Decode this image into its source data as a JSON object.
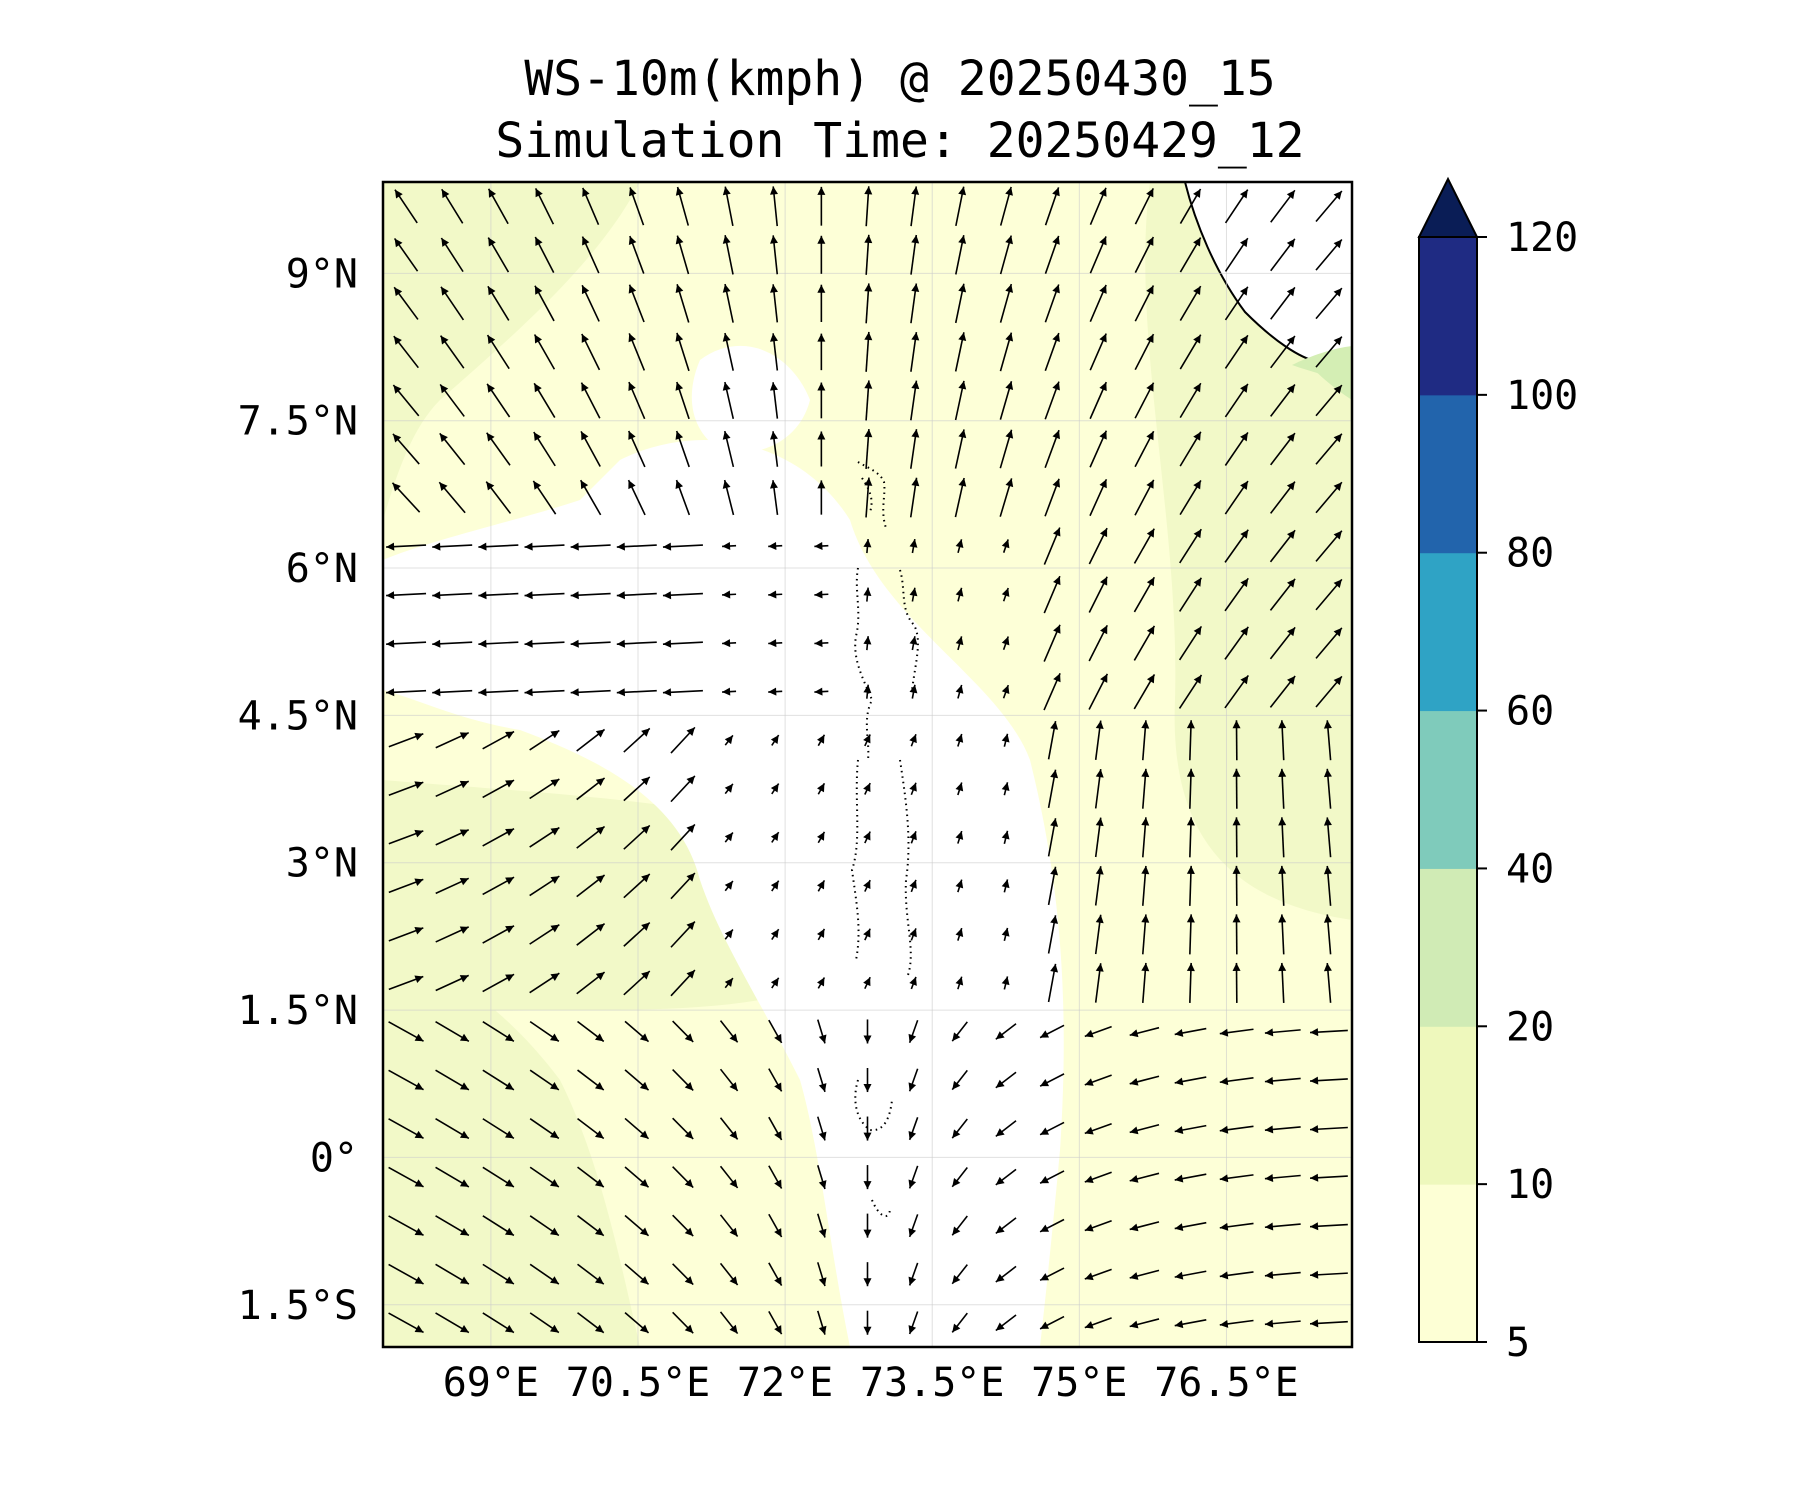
{
  "figure": {
    "title_line1": "WS-10m(kmph) @ 20250430_15",
    "title_line2": "Simulation Time: 20250429_12"
  },
  "map": {
    "lon_labels": [
      "69°E",
      "70.5°E",
      "72°E",
      "73.5°E",
      "75°E",
      "76.5°E"
    ],
    "lat_labels": [
      "9°N",
      "7.5°N",
      "6°N",
      "4.5°N",
      "3°N",
      "1.5°N",
      "0°",
      "1.5°S"
    ],
    "lon_ticks": [
      69,
      70.5,
      72,
      73.5,
      75,
      76.5
    ],
    "lat_ticks": [
      9,
      7.5,
      6,
      4.5,
      3,
      1.5,
      0,
      -1.5
    ],
    "lon_range": [
      67.9,
      77.78
    ],
    "lat_range": [
      -1.93,
      9.93
    ],
    "field": "10 m wind speed (kmph) with wind direction arrows",
    "field_colors": {
      "land": "#ffffff",
      "ocean_5_10": "#fdffd7",
      "ocean_10_20": "#f2f9c8",
      "ocean_20_40": "#d4eeb4"
    }
  },
  "colorbar": {
    "tick_labels": [
      "5",
      "10",
      "20",
      "40",
      "60",
      "80",
      "100",
      "120"
    ],
    "levels": [
      5,
      10,
      20,
      40,
      60,
      80,
      100,
      120
    ],
    "colors": [
      "#fdffd5",
      "#eef8bc",
      "#d0ebb5",
      "#7fcbbb",
      "#2fa3c5",
      "#2264ac",
      "#1f2b83"
    ],
    "extend_color": "#0a1d56",
    "extend": "max"
  }
}
